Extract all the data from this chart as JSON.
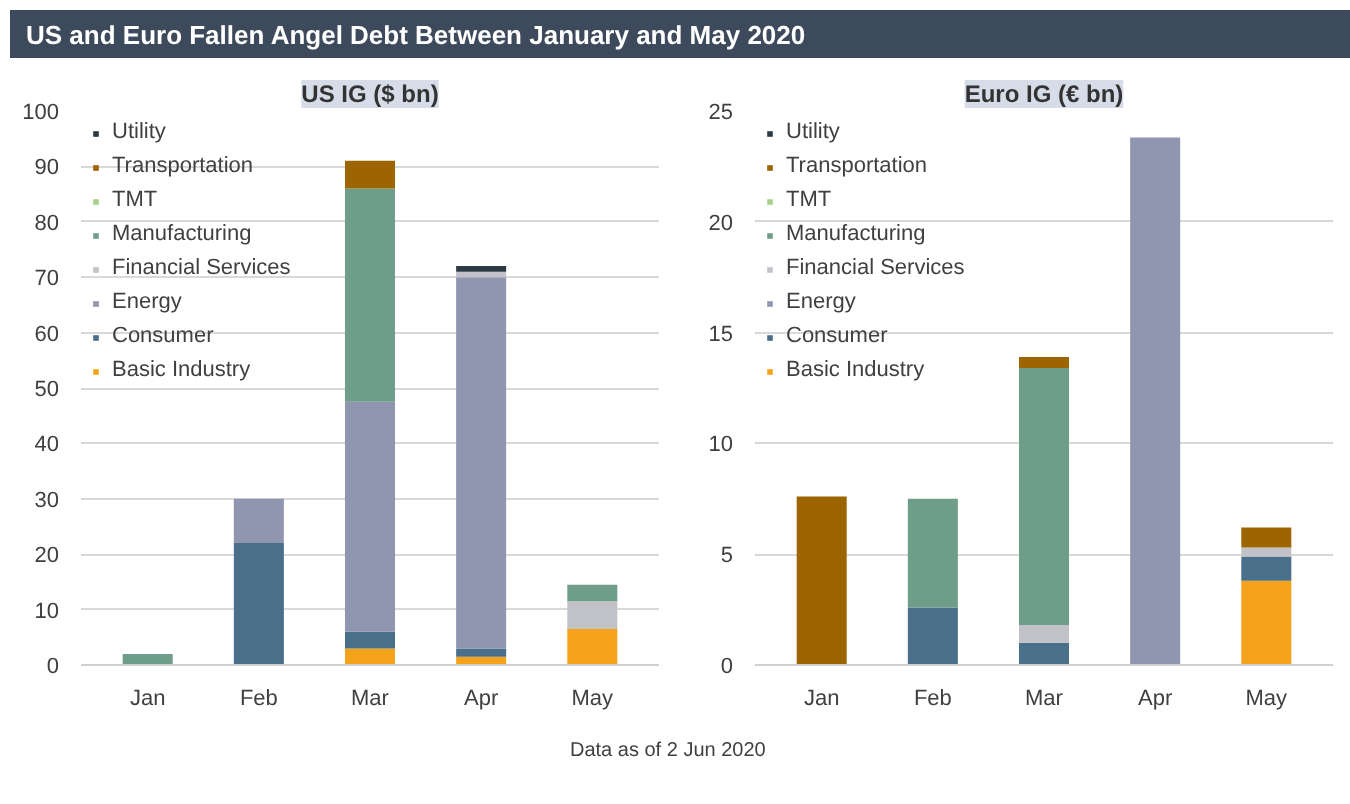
{
  "chart_data": [
    {
      "type": "bar",
      "title": "US and Euro Fallen Angel Debt Between January and May 2020",
      "subtitle": "US IG ($ bn)",
      "stacked": true,
      "categories": [
        "Jan",
        "Feb",
        "Mar",
        "Apr",
        "May"
      ],
      "ylim": [
        0,
        100
      ],
      "yticks": [
        0,
        10,
        20,
        30,
        40,
        50,
        60,
        70,
        80,
        90,
        100
      ],
      "grid": "y",
      "legend": "top left",
      "series": [
        {
          "name": "Basic Industry",
          "color": "#f5a31a",
          "values": [
            null,
            null,
            3,
            1.5,
            6.5
          ]
        },
        {
          "name": "Consumer",
          "color": "#4a6f8a",
          "values": [
            null,
            22,
            3,
            1.5,
            null
          ]
        },
        {
          "name": "Energy",
          "color": "#9196b0",
          "values": [
            null,
            8,
            41.5,
            67,
            null
          ]
        },
        {
          "name": "Financial Services",
          "color": "#c0c2c8",
          "values": [
            null,
            null,
            null,
            1,
            5
          ]
        },
        {
          "name": "Manufacturing",
          "color": "#6e9e8a",
          "values": [
            2,
            null,
            38.5,
            null,
            3
          ]
        },
        {
          "name": "TMT",
          "color": "#a8d08d",
          "values": [
            null,
            null,
            null,
            null,
            null
          ]
        },
        {
          "name": "Transportation",
          "color": "#9c6500",
          "values": [
            null,
            null,
            5,
            null,
            null
          ]
        },
        {
          "name": "Utility",
          "color": "#2b3a45",
          "values": [
            null,
            null,
            null,
            1,
            null
          ]
        }
      ],
      "annotations": [
        "Data as of 2 Jun 2020"
      ]
    },
    {
      "type": "bar",
      "subtitle": "Euro IG (€ bn)",
      "stacked": true,
      "categories": [
        "Jan",
        "Feb",
        "Mar",
        "Apr",
        "May"
      ],
      "ylim": [
        0,
        25
      ],
      "yticks": [
        0,
        5,
        10,
        15,
        20,
        25
      ],
      "grid": "y",
      "legend": "top left",
      "series": [
        {
          "name": "Basic Industry",
          "color": "#f5a31a",
          "values": [
            null,
            null,
            null,
            null,
            3.8
          ]
        },
        {
          "name": "Consumer",
          "color": "#4a6f8a",
          "values": [
            null,
            2.6,
            1.0,
            null,
            1.1
          ]
        },
        {
          "name": "Energy",
          "color": "#9196b0",
          "values": [
            null,
            null,
            null,
            23.8,
            null
          ]
        },
        {
          "name": "Financial Services",
          "color": "#c0c2c8",
          "values": [
            null,
            null,
            0.8,
            null,
            0.4
          ]
        },
        {
          "name": "Manufacturing",
          "color": "#6e9e8a",
          "values": [
            null,
            4.9,
            11.6,
            null,
            null
          ]
        },
        {
          "name": "TMT",
          "color": "#a8d08d",
          "values": [
            null,
            null,
            null,
            null,
            null
          ]
        },
        {
          "name": "Transportation",
          "color": "#9c6500",
          "values": [
            7.6,
            null,
            0.5,
            null,
            0.9
          ]
        },
        {
          "name": "Utility",
          "color": "#2b3a45",
          "values": [
            null,
            null,
            null,
            null,
            null
          ]
        }
      ]
    }
  ]
}
